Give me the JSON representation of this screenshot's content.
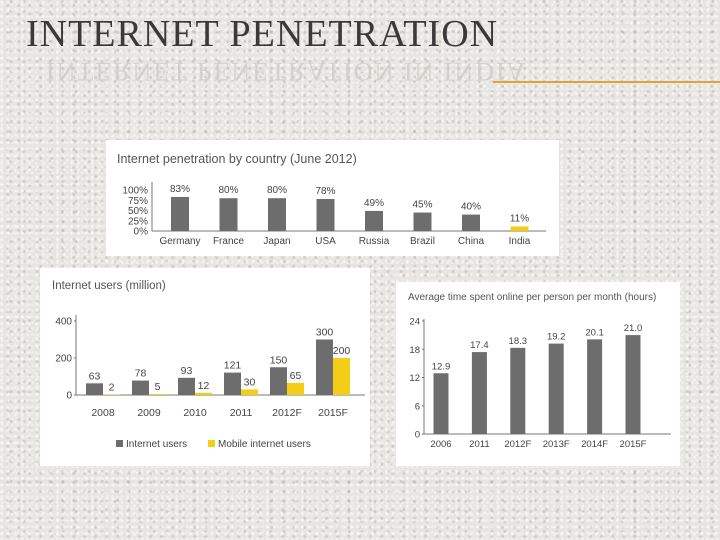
{
  "page": {
    "title": "INTERNET PENETRATION",
    "reflection_text": "INTERNET PENETRATION IN INDIA",
    "accent_color": "#e2a13c"
  },
  "chart_data": [
    {
      "type": "bar",
      "title": "Internet penetration by country (June 2012)",
      "categories": [
        "Germany",
        "France",
        "Japan",
        "USA",
        "Russia",
        "Brazil",
        "China",
        "India"
      ],
      "values": [
        83,
        80,
        80,
        78,
        49,
        45,
        40,
        11
      ],
      "data_labels": [
        "83%",
        "80%",
        "80%",
        "78%",
        "49%",
        "45%",
        "40%",
        "11%"
      ],
      "y_tick_labels": [
        "100%",
        "75%",
        "50%",
        "25%",
        "0%"
      ],
      "y_ticks": [
        100,
        75,
        50,
        25,
        0
      ],
      "ylim": [
        0,
        100
      ],
      "highlight_category": "India",
      "bar_color": "#6d6d6d",
      "highlight_color": "#f4cd17"
    },
    {
      "type": "bar",
      "title": "Internet users (million)",
      "categories": [
        "2008",
        "2009",
        "2010",
        "2011",
        "2012F",
        "2015F"
      ],
      "series": [
        {
          "name": "Internet users",
          "values": [
            63,
            78,
            93,
            121,
            150,
            300
          ],
          "color": "#6d6d6d"
        },
        {
          "name": "Mobile internet users",
          "values": [
            2,
            5,
            12,
            30,
            65,
            200
          ],
          "color": "#f4cd17"
        }
      ],
      "y_ticks": [
        0,
        200,
        400
      ],
      "ylim": [
        0,
        400
      ],
      "legend": "bottom"
    },
    {
      "type": "bar",
      "title": "Average time spent online per person per month (hours)",
      "categories": [
        "2006",
        "2011",
        "2012F",
        "2013F",
        "2014F",
        "2015F"
      ],
      "values": [
        12.9,
        17.4,
        18.3,
        19.2,
        20.1,
        21.0
      ],
      "data_labels": [
        "12.9",
        "17.4",
        "18.3",
        "19.2",
        "20.1",
        "21.0"
      ],
      "y_ticks": [
        0,
        6,
        12,
        18,
        24
      ],
      "ylim": [
        0,
        24
      ],
      "bar_color": "#6d6d6d"
    }
  ]
}
